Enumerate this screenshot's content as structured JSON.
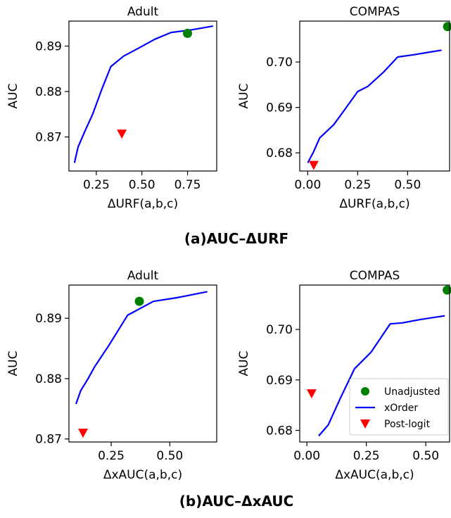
{
  "captions": {
    "a": "(a)AUC–ΔURF",
    "b": "(b)AUC–ΔxAUC"
  },
  "legend": {
    "unadjusted": "Unadjusted",
    "xorder": "xOrder",
    "postlogit": "Post-logit"
  },
  "colors": {
    "unadjusted": "#008000",
    "xorder": "#0000ff",
    "postlogit": "#ff0000"
  },
  "chart_data": [
    {
      "type": "line",
      "title": "Adult",
      "xlabel": "ΔURF(a,b,c)",
      "ylabel": "AUC",
      "xlim": [
        0.1,
        0.91
      ],
      "ylim": [
        0.8625,
        0.8955
      ],
      "xticks": [
        0.25,
        0.5,
        0.75
      ],
      "xtick_labels": [
        "0.25",
        "0.50",
        "0.75"
      ],
      "yticks": [
        0.87,
        0.88,
        0.89
      ],
      "ytick_labels": [
        "0.87",
        "0.88",
        "0.89"
      ],
      "series": [
        {
          "name": "xOrder",
          "kind": "line",
          "x": [
            0.13,
            0.15,
            0.19,
            0.23,
            0.26,
            0.28,
            0.33,
            0.4,
            0.48,
            0.57,
            0.66,
            0.76,
            0.89
          ],
          "y": [
            0.8643,
            0.8678,
            0.8715,
            0.875,
            0.8783,
            0.8805,
            0.8855,
            0.8878,
            0.8895,
            0.8915,
            0.893,
            0.8935,
            0.8944
          ]
        },
        {
          "name": "Unadjusted",
          "kind": "marker-circle",
          "x": [
            0.75
          ],
          "y": [
            0.8928
          ]
        },
        {
          "name": "Post-logit",
          "kind": "marker-triangle",
          "x": [
            0.39
          ],
          "y": [
            0.8707
          ]
        }
      ]
    },
    {
      "type": "line",
      "title": "COMPAS",
      "xlabel": "ΔURF(a,b,c)",
      "ylabel": "AUC",
      "xlim": [
        -0.04,
        0.71
      ],
      "ylim": [
        0.676,
        0.709
      ],
      "xticks": [
        0.0,
        0.25,
        0.5
      ],
      "xtick_labels": [
        "0.00",
        "0.25",
        "0.50"
      ],
      "yticks": [
        0.68,
        0.69,
        0.7
      ],
      "ytick_labels": [
        "0.68",
        "0.69",
        "0.70"
      ],
      "series": [
        {
          "name": "xOrder",
          "kind": "line",
          "x": [
            0.0,
            0.03,
            0.06,
            0.13,
            0.19,
            0.25,
            0.3,
            0.38,
            0.45,
            0.53,
            0.6,
            0.67
          ],
          "y": [
            0.6778,
            0.6803,
            0.6833,
            0.6862,
            0.6898,
            0.6935,
            0.6946,
            0.6978,
            0.7011,
            0.7016,
            0.7021,
            0.7026
          ]
        },
        {
          "name": "Unadjusted",
          "kind": "marker-circle",
          "x": [
            0.7
          ],
          "y": [
            0.7078
          ]
        },
        {
          "name": "Post-logit",
          "kind": "marker-triangle",
          "x": [
            0.03
          ],
          "y": [
            0.6773
          ]
        }
      ]
    },
    {
      "type": "line",
      "title": "Adult",
      "xlabel": "ΔxAUC(a,b,c)",
      "ylabel": "AUC",
      "xlim": [
        0.07,
        0.7
      ],
      "ylim": [
        0.8695,
        0.8955
      ],
      "xticks": [
        0.25,
        0.5
      ],
      "xtick_labels": [
        "0.25",
        "0.50"
      ],
      "yticks": [
        0.87,
        0.88,
        0.89
      ],
      "ytick_labels": [
        "0.87",
        "0.88",
        "0.89"
      ],
      "series": [
        {
          "name": "xOrder",
          "kind": "line",
          "x": [
            0.1,
            0.12,
            0.15,
            0.18,
            0.24,
            0.32,
            0.43,
            0.53,
            0.66
          ],
          "y": [
            0.8758,
            0.878,
            0.8799,
            0.882,
            0.8855,
            0.8905,
            0.8928,
            0.8934,
            0.8944
          ]
        },
        {
          "name": "Unadjusted",
          "kind": "marker-circle",
          "x": [
            0.37
          ],
          "y": [
            0.8928
          ]
        },
        {
          "name": "Post-logit",
          "kind": "marker-triangle",
          "x": [
            0.13
          ],
          "y": [
            0.871
          ]
        }
      ]
    },
    {
      "type": "line",
      "title": "COMPAS",
      "xlabel": "ΔxAUC(a,b,c)",
      "ylabel": "AUC",
      "xlim": [
        -0.03,
        0.6
      ],
      "ylim": [
        0.6777,
        0.7088
      ],
      "xticks": [
        0.0,
        0.25,
        0.5
      ],
      "xtick_labels": [
        "0.00",
        "0.25",
        "0.50"
      ],
      "yticks": [
        0.68,
        0.69,
        0.7
      ],
      "ytick_labels": [
        "0.68",
        "0.69",
        "0.70"
      ],
      "legend": {
        "position": "lower right",
        "entries": [
          "Unadjusted",
          "xOrder",
          "Post-logit"
        ]
      },
      "series": [
        {
          "name": "xOrder",
          "kind": "line",
          "x": [
            0.05,
            0.09,
            0.14,
            0.2,
            0.27,
            0.35,
            0.4,
            0.48,
            0.58
          ],
          "y": [
            0.6789,
            0.6811,
            0.6863,
            0.6922,
            0.6955,
            0.7011,
            0.7013,
            0.702,
            0.7027
          ]
        },
        {
          "name": "Unadjusted",
          "kind": "marker-circle",
          "x": [
            0.59
          ],
          "y": [
            0.7078
          ]
        },
        {
          "name": "Post-logit",
          "kind": "marker-triangle",
          "x": [
            0.02
          ],
          "y": [
            0.6873
          ]
        }
      ]
    }
  ]
}
